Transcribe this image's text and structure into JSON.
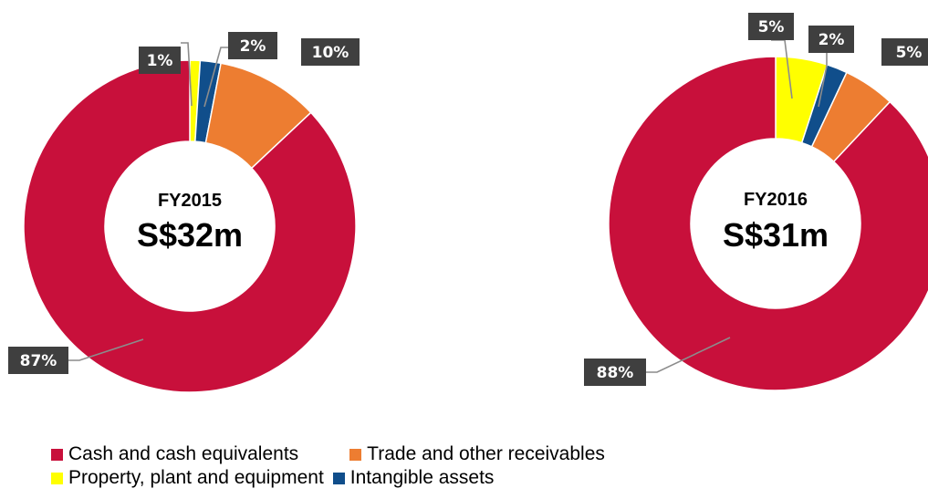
{
  "colors": {
    "cash": "#c8103b",
    "receivables": "#ed7d31",
    "ppe": "#ffff00",
    "intangible": "#104e8b"
  },
  "legend": {
    "cash": "Cash and cash equivalents",
    "receivables": "Trade and other receivables",
    "ppe": "Property, plant and equipment",
    "intangible": "Intangible assets"
  },
  "chart_data": [
    {
      "type": "pie",
      "center_line1": "FY2015",
      "center_line2": "S$32m",
      "slices": [
        {
          "key": "ppe",
          "value": 1,
          "label": "1%"
        },
        {
          "key": "intangible",
          "value": 2,
          "label": "2%"
        },
        {
          "key": "receivables",
          "value": 10,
          "label": "10%"
        },
        {
          "key": "cash",
          "value": 87,
          "label": "87%"
        }
      ]
    },
    {
      "type": "pie",
      "center_line1": "FY2016",
      "center_line2": "S$31m",
      "slices": [
        {
          "key": "ppe",
          "value": 5,
          "label": "5%"
        },
        {
          "key": "intangible",
          "value": 2,
          "label": "2%"
        },
        {
          "key": "receivables",
          "value": 5,
          "label": "5%"
        },
        {
          "key": "cash",
          "value": 88,
          "label": "88%"
        }
      ]
    }
  ]
}
